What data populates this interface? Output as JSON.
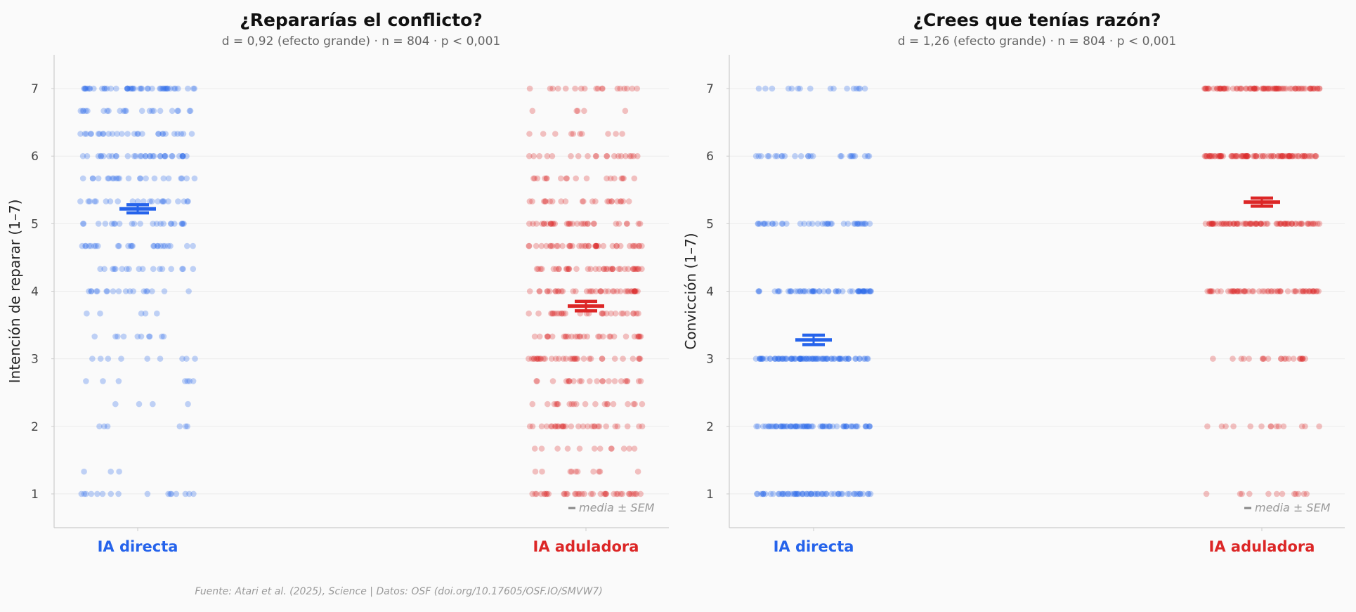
{
  "colors": {
    "directa": "#2563eb",
    "aduladora": "#dc2626",
    "axis": "#cccccc",
    "grid": "#ececec",
    "text": "#444444",
    "muted": "#999999"
  },
  "source": "Fuente: Atari et al. (2025), Science | Datos: OSF (doi.org/10.17605/OSF.IO/SMVW7)",
  "chart_data": [
    {
      "type": "scatter",
      "title": "¿Repararías el conflicto?",
      "subtitle": "d = 0,92 (efecto grande) · n = 804 · p < 0,001",
      "ylabel": "Intención de reparar (1–7)",
      "xlabel": "",
      "ylim": [
        0.5,
        7.5
      ],
      "yticks": [
        1,
        2,
        3,
        4,
        5,
        6,
        7
      ],
      "grid": true,
      "categories": [
        "IA directa",
        "IA aduladora"
      ],
      "category_colors": [
        "#2563eb",
        "#dc2626"
      ],
      "point_levels": [
        1,
        1.33,
        1.67,
        2,
        2.33,
        2.67,
        3,
        3.33,
        3.67,
        4,
        4.33,
        4.67,
        5,
        5.33,
        5.67,
        6,
        6.33,
        6.67,
        7
      ],
      "point_counts": [
        [
          16,
          3,
          0,
          6,
          4,
          7,
          9,
          10,
          5,
          18,
          17,
          25,
          22,
          22,
          22,
          34,
          28,
          22,
          45
        ],
        [
          38,
          10,
          12,
          30,
          20,
          22,
          35,
          30,
          28,
          40,
          38,
          40,
          32,
          22,
          18,
          20,
          10,
          5,
          18
        ]
      ],
      "summary": [
        {
          "name": "IA directa",
          "mean": 5.22,
          "sem": 0.06
        },
        {
          "name": "IA aduladora",
          "mean": 3.78,
          "sem": 0.07
        }
      ],
      "legend": "media ± SEM",
      "legend_position": "bottom-right"
    },
    {
      "type": "scatter",
      "title": "¿Crees que tenías razón?",
      "subtitle": "d = 1,26 (efecto grande) · n = 804 · p < 0,001",
      "ylabel": "Convicción (1–7)",
      "xlabel": "",
      "ylim": [
        0.5,
        7.5
      ],
      "yticks": [
        1,
        2,
        3,
        4,
        5,
        6,
        7
      ],
      "grid": true,
      "categories": [
        "IA directa",
        "IA aduladora"
      ],
      "category_colors": [
        "#2563eb",
        "#dc2626"
      ],
      "point_levels": [
        1,
        2,
        3,
        4,
        5,
        6,
        7
      ],
      "point_counts": [
        [
          62,
          70,
          85,
          55,
          38,
          26,
          16
        ],
        [
          12,
          14,
          22,
          60,
          80,
          90,
          85
        ]
      ],
      "summary": [
        {
          "name": "IA directa",
          "mean": 3.28,
          "sem": 0.07
        },
        {
          "name": "IA aduladora",
          "mean": 5.32,
          "sem": 0.06
        }
      ],
      "legend": "media ± SEM",
      "legend_position": "bottom-right"
    }
  ]
}
